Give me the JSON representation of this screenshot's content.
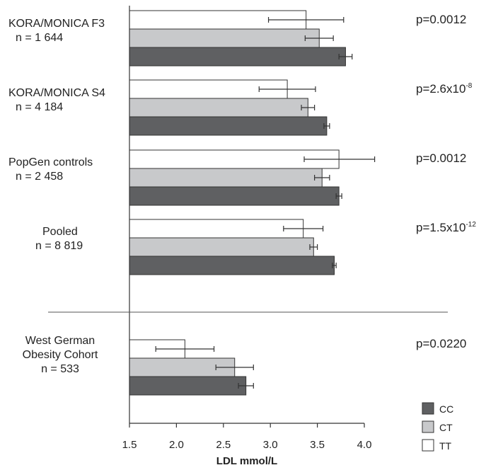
{
  "chart_data": {
    "type": "bar",
    "orientation": "horizontal",
    "xlabel": "LDL mmol/L",
    "xlim": [
      1.5,
      4.0
    ],
    "xticks": [
      "1.5",
      "2.0",
      "2.5",
      "3.0",
      "3.5",
      "4.0"
    ],
    "series": [
      {
        "name": "CC",
        "color": "#5f6062"
      },
      {
        "name": "CT",
        "color": "#c8c9cb"
      },
      {
        "name": "TT",
        "color": "#ffffff"
      }
    ],
    "groups": [
      {
        "label_lines": [
          "KORA/MONICA F3",
          "n = 1 644"
        ],
        "p_value": {
          "base": "p=0.0012",
          "exp": ""
        },
        "bars": [
          {
            "genotype": "TT",
            "value": 3.38,
            "err_low": 2.98,
            "err_high": 3.78
          },
          {
            "genotype": "CT",
            "value": 3.52,
            "err_low": 3.37,
            "err_high": 3.67
          },
          {
            "genotype": "CC",
            "value": 3.8,
            "err_low": 3.73,
            "err_high": 3.87
          }
        ]
      },
      {
        "label_lines": [
          "KORA/MONICA S4",
          "n = 4 184"
        ],
        "p_value": {
          "base": "p=2.6x10",
          "exp": "-8"
        },
        "bars": [
          {
            "genotype": "TT",
            "value": 3.18,
            "err_low": 2.88,
            "err_high": 3.48
          },
          {
            "genotype": "CT",
            "value": 3.4,
            "err_low": 3.33,
            "err_high": 3.47
          },
          {
            "genotype": "CC",
            "value": 3.6,
            "err_low": 3.57,
            "err_high": 3.63
          }
        ]
      },
      {
        "label_lines": [
          "PopGen controls",
          "n = 2 458"
        ],
        "p_value": {
          "base": "p=0.0012",
          "exp": ""
        },
        "bars": [
          {
            "genotype": "TT",
            "value": 3.73,
            "err_low": 3.36,
            "err_high": 4.11
          },
          {
            "genotype": "CT",
            "value": 3.55,
            "err_low": 3.47,
            "err_high": 3.63
          },
          {
            "genotype": "CC",
            "value": 3.73,
            "err_low": 3.7,
            "err_high": 3.76
          }
        ]
      },
      {
        "label_lines": [
          "Pooled",
          "n = 8 819"
        ],
        "p_value": {
          "base": "p=1.5x10",
          "exp": "-12"
        },
        "bars": [
          {
            "genotype": "TT",
            "value": 3.35,
            "err_low": 3.14,
            "err_high": 3.56
          },
          {
            "genotype": "CT",
            "value": 3.46,
            "err_low": 3.42,
            "err_high": 3.5
          },
          {
            "genotype": "CC",
            "value": 3.68,
            "err_low": 3.66,
            "err_high": 3.7
          }
        ]
      },
      {
        "label_lines": [
          "West German",
          "Obesity Cohort",
          "n = 533"
        ],
        "p_value": {
          "base": "p=0.0220",
          "exp": ""
        },
        "bars": [
          {
            "genotype": "TT",
            "value": 2.09,
            "err_low": 1.78,
            "err_high": 2.4
          },
          {
            "genotype": "CT",
            "value": 2.62,
            "err_low": 2.42,
            "err_high": 2.82
          },
          {
            "genotype": "CC",
            "value": 2.74,
            "err_low": 2.66,
            "err_high": 2.82
          }
        ]
      }
    ],
    "legend": {
      "position": "bottom-right",
      "entries": [
        "CC",
        "CT",
        "TT"
      ]
    },
    "grid": false
  }
}
